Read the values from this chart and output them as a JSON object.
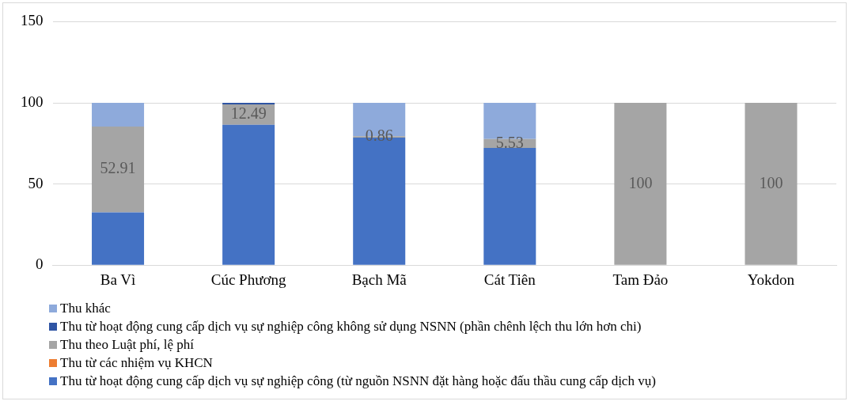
{
  "chart_data": {
    "type": "bar",
    "stacked": true,
    "categories": [
      "Ba Vì",
      "Cúc Phương",
      "Bạch Mã",
      "Cát Tiên",
      "Tam Đảo",
      "Yokdon"
    ],
    "ylim": [
      0,
      150
    ],
    "yticks": [
      0,
      50,
      100,
      150
    ],
    "grid": "y",
    "legend": "bottom",
    "series": [
      {
        "name": "Thu từ hoạt động cung cấp dịch vụ sự nghiệp công  (từ nguồn NSNN đặt hàng hoặc đấu thầu cung cấp dịch vụ)",
        "color": "#4472c4",
        "values": [
          32.5,
          86.5,
          78.6,
          72.2,
          0,
          0
        ]
      },
      {
        "name": "Thu từ các nhiệm vụ KHCN",
        "color": "#ed7d31",
        "values": [
          0,
          0,
          0,
          0,
          0,
          0
        ]
      },
      {
        "name": "Thu theo Luật phí, lệ phí",
        "color": "#a5a5a5",
        "values": [
          52.91,
          12.49,
          0.86,
          5.53,
          100,
          100
        ],
        "value_labels": [
          "52.91",
          "12.49",
          "0.86",
          "5.53",
          "100",
          "100"
        ]
      },
      {
        "name": "Thu từ hoạt động cung cấp dịch vụ sự nghiệp công không sử dụng NSNN (phần chênh lệch thu lớn hơn chi)",
        "color": "#2f55a4",
        "values": [
          0,
          1.0,
          0,
          0,
          0,
          0
        ]
      },
      {
        "name": "Thu khác",
        "color": "#8eaadb",
        "values": [
          14.6,
          0,
          20.5,
          22.3,
          0,
          0
        ]
      }
    ]
  }
}
